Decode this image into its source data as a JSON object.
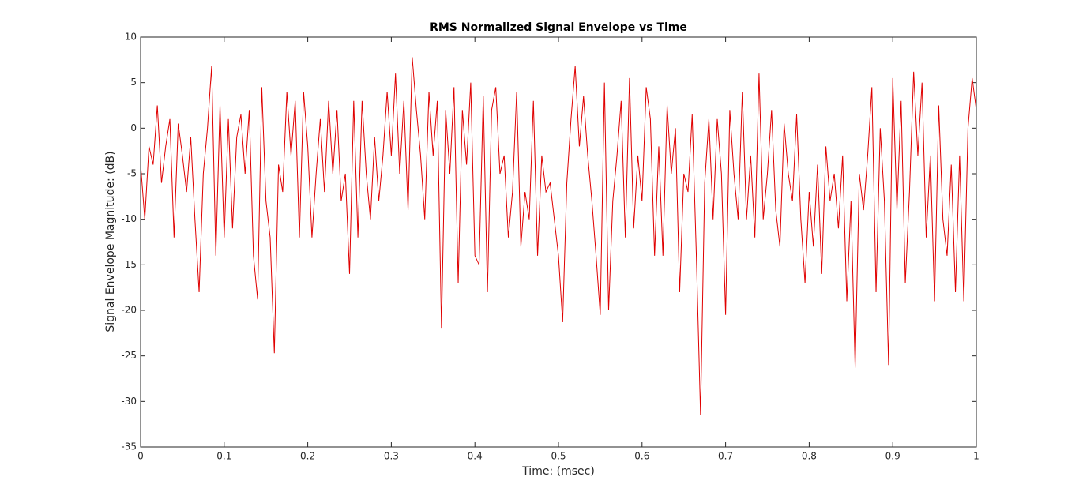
{
  "chart_data": {
    "type": "line",
    "title": "RMS Normalized Signal Envelope vs Time",
    "x_label": "Time: (msec)",
    "y_label": "Signal Envelope Magnitude: (dB)",
    "xlim": [
      0,
      1
    ],
    "xticks": [
      0,
      0.1,
      0.2,
      0.3,
      0.4,
      0.5,
      0.6,
      0.7,
      0.8,
      0.9,
      1
    ],
    "ylim": [
      -35,
      10
    ],
    "yticks": [
      -35,
      -30,
      -25,
      -20,
      -15,
      -10,
      -5,
      0,
      5,
      10
    ],
    "grid": false,
    "series": [
      {
        "color": "#e00000",
        "x": [
          0,
          0.005,
          0.01,
          0.015,
          0.02,
          0.025,
          0.03,
          0.035,
          0.04,
          0.045,
          0.05,
          0.055,
          0.06,
          0.065,
          0.07,
          0.075,
          0.08,
          0.085,
          0.09,
          0.095,
          0.1,
          0.105,
          0.11,
          0.115,
          0.12,
          0.125,
          0.13,
          0.135,
          0.14,
          0.145,
          0.15,
          0.155,
          0.16,
          0.165,
          0.17,
          0.175,
          0.18,
          0.185,
          0.19,
          0.195,
          0.2,
          0.205,
          0.21,
          0.215,
          0.22,
          0.225,
          0.23,
          0.235,
          0.24,
          0.245,
          0.25,
          0.255,
          0.26,
          0.265,
          0.27,
          0.275,
          0.28,
          0.285,
          0.29,
          0.295,
          0.3,
          0.305,
          0.31,
          0.315,
          0.32,
          0.325,
          0.33,
          0.335,
          0.34,
          0.345,
          0.35,
          0.355,
          0.36,
          0.365,
          0.37,
          0.375,
          0.38,
          0.385,
          0.39,
          0.395,
          0.4,
          0.405,
          0.41,
          0.415,
          0.42,
          0.425,
          0.43,
          0.435,
          0.44,
          0.445,
          0.45,
          0.455,
          0.46,
          0.465,
          0.47,
          0.475,
          0.48,
          0.485,
          0.49,
          0.495,
          0.5,
          0.505,
          0.51,
          0.515,
          0.52,
          0.525,
          0.53,
          0.535,
          0.54,
          0.545,
          0.55,
          0.555,
          0.56,
          0.565,
          0.57,
          0.575,
          0.58,
          0.585,
          0.59,
          0.595,
          0.6,
          0.605,
          0.61,
          0.615,
          0.62,
          0.625,
          0.63,
          0.635,
          0.64,
          0.645,
          0.65,
          0.655,
          0.66,
          0.665,
          0.67,
          0.675,
          0.68,
          0.685,
          0.69,
          0.695,
          0.7,
          0.705,
          0.71,
          0.715,
          0.72,
          0.725,
          0.73,
          0.735,
          0.74,
          0.745,
          0.75,
          0.755,
          0.76,
          0.765,
          0.77,
          0.775,
          0.78,
          0.785,
          0.79,
          0.795,
          0.8,
          0.805,
          0.81,
          0.815,
          0.82,
          0.825,
          0.83,
          0.835,
          0.84,
          0.845,
          0.85,
          0.855,
          0.86,
          0.865,
          0.87,
          0.875,
          0.88,
          0.885,
          0.89,
          0.895,
          0.9,
          0.905,
          0.91,
          0.915,
          0.92,
          0.925,
          0.93,
          0.935,
          0.94,
          0.945,
          0.95,
          0.955,
          0.96,
          0.965,
          0.97,
          0.975,
          0.98,
          0.985,
          0.99,
          0.995,
          1
        ],
        "values": [
          -4,
          -10,
          -2,
          -4,
          2.5,
          -6,
          -2,
          1,
          -12,
          0.5,
          -3,
          -7,
          -1,
          -10,
          -18,
          -5,
          0,
          6.8,
          -14,
          2.5,
          -12,
          1,
          -11,
          -1,
          1.5,
          -5,
          2,
          -14,
          -18.8,
          4.5,
          -8,
          -12,
          -24.7,
          -4,
          -7,
          4,
          -3,
          3,
          -12,
          4,
          -2,
          -12,
          -5,
          1,
          -7,
          3,
          -5,
          2,
          -8,
          -5,
          -16,
          3,
          -12,
          3,
          -5,
          -10,
          -1,
          -8,
          -3,
          4,
          -3,
          6,
          -5,
          3,
          -9,
          7.8,
          2,
          -3,
          -10,
          4,
          -3,
          3,
          -22,
          2,
          -5,
          4.5,
          -17,
          2,
          -4,
          5,
          -14,
          -15,
          3.5,
          -18,
          2,
          4.5,
          -5,
          -3,
          -12,
          -7,
          4,
          -13,
          -7,
          -10,
          3,
          -14,
          -3,
          -7,
          -6,
          -10,
          -14,
          -21.3,
          -6,
          1,
          6.8,
          -2,
          3.5,
          -3,
          -8,
          -14,
          -20.5,
          5,
          -20,
          -8,
          -3,
          3,
          -12,
          5.5,
          -11,
          -3,
          -8,
          4.5,
          1,
          -14,
          -2,
          -14,
          2.5,
          -5,
          0,
          -18,
          -5,
          -7,
          1.5,
          -14,
          -31.5,
          -6,
          1,
          -10,
          1,
          -5,
          -20.5,
          2,
          -5,
          -10,
          4,
          -10,
          -3,
          -12,
          6,
          -10,
          -5,
          2,
          -9,
          -13,
          0.5,
          -5,
          -8,
          1.5,
          -10,
          -17,
          -7,
          -13,
          -4,
          -16,
          -2,
          -8,
          -5,
          -11,
          -3,
          -19,
          -8,
          -26.3,
          -5,
          -9,
          -3,
          4.5,
          -18,
          0,
          -8,
          -26,
          5.5,
          -9,
          3,
          -17,
          -7,
          6.2,
          -3,
          5,
          -12,
          -3,
          -19,
          2.5,
          -10,
          -14,
          -4,
          -18,
          -3,
          -19,
          0,
          5.5,
          2
        ]
      }
    ]
  }
}
